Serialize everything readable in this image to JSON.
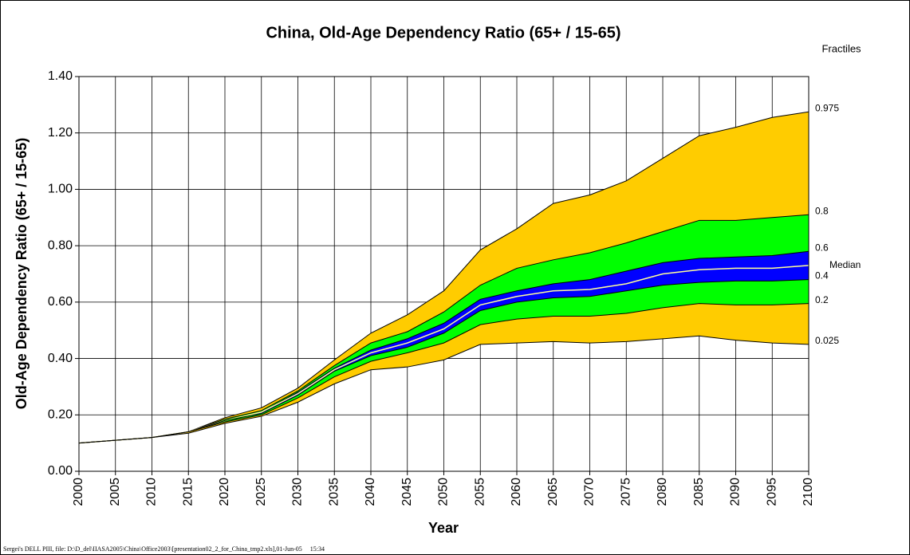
{
  "chart_data": {
    "type": "fan",
    "title": "China, Old-Age Dependency Ratio (65+ / 15-65)",
    "xlabel": "Year",
    "ylabel": "Old-Age Dependency Ratio (65+ / 15-65)",
    "legend_title": "Fractiles",
    "footer": "Sergei's DELL PIII, file: D:\\D_del\\IIASA2005\\China\\Office2003\\[presentation02_2_for_China_tmp2.xls],01-Jun-05     15:34",
    "x": [
      2000,
      2005,
      2010,
      2015,
      2020,
      2025,
      2030,
      2035,
      2040,
      2045,
      2050,
      2055,
      2060,
      2065,
      2070,
      2075,
      2080,
      2085,
      2090,
      2095,
      2100
    ],
    "xlim": [
      2000,
      2100
    ],
    "xticks": [
      2000,
      2005,
      2010,
      2015,
      2020,
      2025,
      2030,
      2035,
      2040,
      2045,
      2050,
      2055,
      2060,
      2065,
      2070,
      2075,
      2080,
      2085,
      2090,
      2095,
      2100
    ],
    "ylim": [
      0,
      1.4
    ],
    "yticks": [
      {
        "value": 0,
        "label": "0.00"
      },
      {
        "value": 0.2,
        "label": "0.20"
      },
      {
        "value": 0.4,
        "label": "0.40"
      },
      {
        "value": 0.6,
        "label": "0.60"
      },
      {
        "value": 0.8,
        "label": "0.80"
      },
      {
        "value": 1.0,
        "label": "1.00"
      },
      {
        "value": 1.2,
        "label": "1.20"
      },
      {
        "value": 1.4,
        "label": "1.40"
      }
    ],
    "grid": true,
    "band_colors": [
      "#ffcc00",
      "#00ff00",
      "#0000ff",
      "#0000ff",
      "#00ff00",
      "#ffcc00"
    ],
    "series": [
      {
        "name": "0.975",
        "color": "#000000",
        "values": [
          0.1,
          0.11,
          0.12,
          0.14,
          0.19,
          0.225,
          0.295,
          0.395,
          0.49,
          0.555,
          0.64,
          0.785,
          0.86,
          0.95,
          0.98,
          1.03,
          1.11,
          1.19,
          1.22,
          1.255,
          1.275
        ]
      },
      {
        "name": "0.8",
        "color": "#000000",
        "values": [
          0.1,
          0.11,
          0.12,
          0.14,
          0.185,
          0.215,
          0.285,
          0.375,
          0.455,
          0.495,
          0.565,
          0.66,
          0.72,
          0.75,
          0.775,
          0.81,
          0.85,
          0.89,
          0.89,
          0.9,
          0.91
        ]
      },
      {
        "name": "0.6",
        "color": "#000000",
        "values": [
          0.1,
          0.11,
          0.12,
          0.14,
          0.18,
          0.21,
          0.28,
          0.365,
          0.43,
          0.47,
          0.525,
          0.61,
          0.64,
          0.665,
          0.68,
          0.71,
          0.74,
          0.755,
          0.76,
          0.765,
          0.78
        ]
      },
      {
        "name": "Median",
        "color": "#ffff99",
        "values": [
          0.1,
          0.11,
          0.12,
          0.14,
          0.18,
          0.21,
          0.275,
          0.36,
          0.42,
          0.455,
          0.505,
          0.59,
          0.62,
          0.64,
          0.645,
          0.665,
          0.7,
          0.715,
          0.72,
          0.72,
          0.73
        ]
      },
      {
        "name": "0.4",
        "color": "#000000",
        "values": [
          0.1,
          0.11,
          0.12,
          0.14,
          0.18,
          0.205,
          0.27,
          0.355,
          0.41,
          0.44,
          0.49,
          0.57,
          0.6,
          0.615,
          0.62,
          0.64,
          0.66,
          0.67,
          0.675,
          0.675,
          0.68
        ]
      },
      {
        "name": "0.2",
        "color": "#000000",
        "values": [
          0.1,
          0.11,
          0.12,
          0.14,
          0.175,
          0.2,
          0.26,
          0.335,
          0.39,
          0.42,
          0.455,
          0.52,
          0.54,
          0.55,
          0.55,
          0.56,
          0.58,
          0.595,
          0.59,
          0.59,
          0.595
        ]
      },
      {
        "name": "0.025",
        "color": "#000000",
        "values": [
          0.1,
          0.11,
          0.12,
          0.135,
          0.17,
          0.195,
          0.245,
          0.31,
          0.36,
          0.37,
          0.395,
          0.45,
          0.455,
          0.46,
          0.455,
          0.46,
          0.47,
          0.48,
          0.465,
          0.455,
          0.45
        ]
      }
    ]
  }
}
